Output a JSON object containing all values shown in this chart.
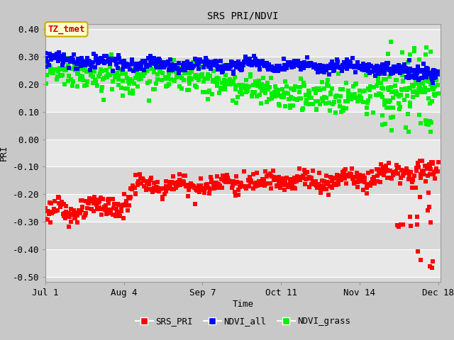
{
  "title": "SRS PRI/NDVI",
  "xlabel": "Time",
  "ylabel": "PRI",
  "ylim": [
    -0.52,
    0.42
  ],
  "yticks": [
    -0.5,
    -0.4,
    -0.3,
    -0.2,
    -0.1,
    0.0,
    0.1,
    0.2,
    0.3,
    0.4
  ],
  "xlim_days": [
    0,
    171
  ],
  "xtick_labels": [
    "Jul 1",
    "Aug 4",
    "Sep 7",
    "Oct 11",
    "Nov 14",
    "Dec 18"
  ],
  "xtick_days": [
    0,
    34,
    68,
    102,
    136,
    170
  ],
  "annotation_text": "TZ_tmet",
  "annotation_color": "#cc0000",
  "annotation_bg": "#ffffcc",
  "annotation_border": "#ccaa00",
  "fig_bg_color": "#c8c8c8",
  "band_dark": "#d8d8d8",
  "band_light": "#e8e8e8",
  "series_colors": {
    "SRS_PRI": "#ff0000",
    "NDVI_all": "#0000ff",
    "NDVI_grass": "#00ee00"
  },
  "marker_size": 4,
  "legend_labels": [
    "SRS_PRI",
    "NDVI_all",
    "NDVI_grass"
  ],
  "legend_colors": [
    "#ff0000",
    "#0000ff",
    "#00ee00"
  ]
}
